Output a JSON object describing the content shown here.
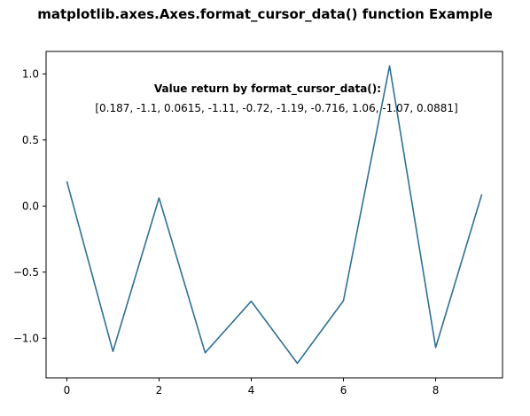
{
  "chart_data": {
    "type": "line",
    "title": "matplotlib.axes.Axes.format_cursor_data() function Example",
    "xlabel": "",
    "ylabel": "",
    "x": [
      0,
      1,
      2,
      3,
      4,
      5,
      6,
      7,
      8,
      9
    ],
    "series": [
      {
        "values": [
          0.187,
          -1.1,
          0.0615,
          -1.11,
          -0.72,
          -1.19,
          -0.716,
          1.06,
          -1.07,
          0.0881
        ],
        "color": "#2f7094"
      }
    ],
    "xlim": [
      -0.45,
      9.45
    ],
    "ylim": [
      -1.3,
      1.17
    ],
    "xticks": [
      0,
      2,
      4,
      6,
      8
    ],
    "xtick_labels": [
      "0",
      "2",
      "4",
      "6",
      "8"
    ],
    "yticks": [
      -1.0,
      -0.5,
      0.0,
      0.5,
      1.0
    ],
    "ytick_labels": [
      "−1.0",
      "−0.5",
      "0.0",
      "0.5",
      "1.0"
    ],
    "grid": false,
    "legend": "none",
    "annotations": [
      {
        "text": "Value return by format_cursor_data():",
        "weight": "bold"
      },
      {
        "text": "[0.187, -1.1, 0.0615, -1.11, -0.72, -1.19, -0.716, 1.06, -1.07, 0.0881]",
        "weight": "normal"
      }
    ]
  }
}
